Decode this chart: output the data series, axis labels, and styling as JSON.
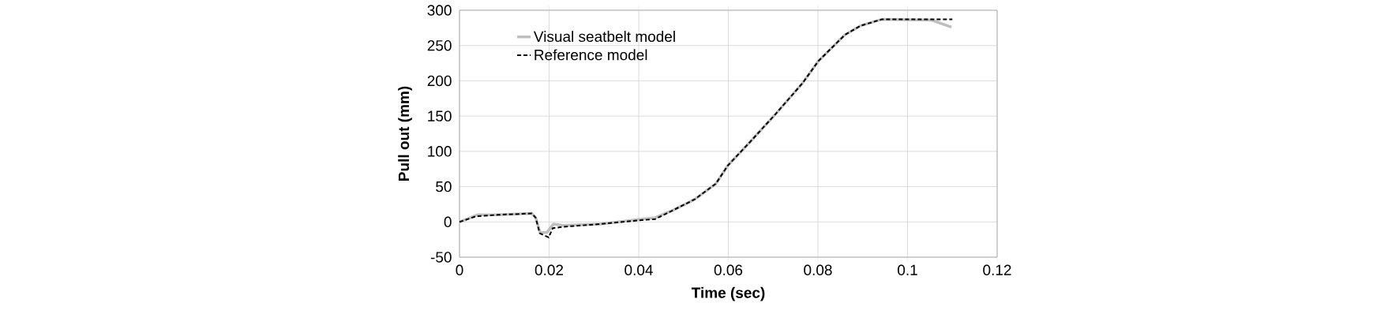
{
  "chart_data": {
    "type": "line",
    "xlabel": "Time (sec)",
    "ylabel": "Pull out (mm)",
    "xlim": [
      0,
      0.12
    ],
    "ylim": [
      -50,
      300
    ],
    "xticks": [
      0,
      0.02,
      0.04,
      0.06,
      0.08,
      0.1,
      0.12
    ],
    "yticks": [
      -50,
      0,
      50,
      100,
      150,
      200,
      250,
      300
    ],
    "grid": true,
    "legend": "top left",
    "marker": "none",
    "series": [
      {
        "name": "Visual seatbelt model",
        "color": "#bfbfbf",
        "line_style": "solid",
        "x": [
          0,
          0.004,
          0.0085,
          0.0161,
          0.017,
          0.018,
          0.0195,
          0.021,
          0.0231,
          0.0314,
          0.0396,
          0.0437,
          0.0478,
          0.0525,
          0.0572,
          0.0599,
          0.0648,
          0.0707,
          0.0766,
          0.0801,
          0.086,
          0.0895,
          0.0942,
          0.1054,
          0.1098
        ],
        "values": [
          0,
          10,
          10,
          12,
          6,
          -15,
          -15,
          -3,
          -5,
          -3,
          3,
          6,
          17,
          32,
          54,
          80,
          113,
          154,
          197,
          228,
          265,
          278,
          287,
          286,
          276
        ]
      },
      {
        "name": "Reference model",
        "color": "#000000",
        "line_style": "dashed",
        "x": [
          0,
          0.0037,
          0.0085,
          0.0161,
          0.017,
          0.0179,
          0.0199,
          0.0208,
          0.0231,
          0.0314,
          0.0396,
          0.0437,
          0.0478,
          0.0525,
          0.0572,
          0.0599,
          0.0648,
          0.0707,
          0.0766,
          0.0801,
          0.086,
          0.0895,
          0.0942,
          0.11
        ],
        "values": [
          0,
          8,
          10,
          12,
          6,
          -16,
          -22,
          -9,
          -7,
          -3,
          2,
          4,
          17,
          32,
          54,
          80,
          113,
          154,
          197,
          228,
          265,
          278,
          287,
          287
        ]
      }
    ]
  }
}
